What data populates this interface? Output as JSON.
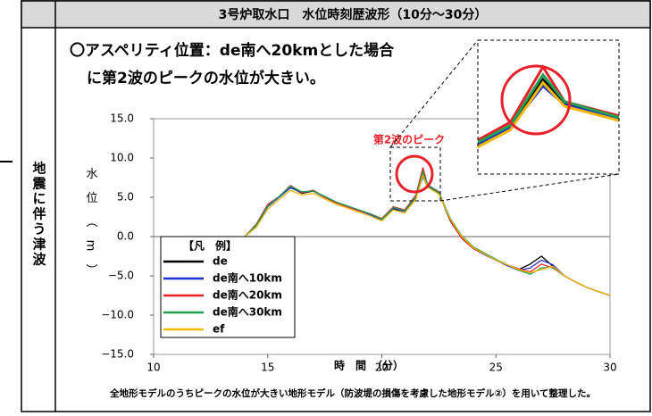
{
  "header": {
    "title": "3号炉取水口　水位時刻歴波形（10分～30分）"
  },
  "side_label": "地震に伴う津波",
  "heading": [
    "〇アスペリティ位置：de南へ20kmとした場合",
    "に第2波のピークの水位が大きい。"
  ],
  "footnote": "全地形モデルのうちピークの水位が大きい地形モデル（防波堤の損傷を考慮した地形モデル②）を用いて整理した。",
  "chart_data": {
    "type": "line",
    "xlabel": "時　間　（分）",
    "ylabel": "水位（m）",
    "annotation": "第2波のピーク",
    "legend_title": "【凡　例】",
    "x": [
      14,
      14.5,
      15,
      15.5,
      16,
      16.5,
      17,
      17.5,
      18,
      18.5,
      19,
      19.5,
      20,
      20.5,
      21,
      21.5,
      21.8,
      22,
      22.5,
      23,
      23.5,
      24,
      24.5,
      25,
      25.5,
      26,
      26.5,
      27,
      27.5,
      28,
      28.5,
      29,
      29.5,
      30
    ],
    "series": [
      {
        "name": "de",
        "color": "#000000",
        "values": [
          0,
          1.5,
          4,
          5,
          6.3,
          5.5,
          5.8,
          5,
          4.3,
          3.8,
          3.3,
          2.8,
          2.2,
          3.5,
          3.2,
          5,
          8,
          6.5,
          5.5,
          2,
          -0.2,
          -1.5,
          -2.3,
          -3,
          -3.6,
          -4.2,
          -3.5,
          -2.5,
          -3.8,
          -5,
          -5.8,
          -6.5,
          -7,
          -7.5
        ]
      },
      {
        "name": "de南へ10km",
        "color": "#1f2fd0",
        "values": [
          0,
          1.4,
          3.8,
          5,
          6.2,
          5.6,
          5.8,
          5.1,
          4.4,
          3.8,
          3.3,
          2.8,
          2.1,
          3.6,
          3.2,
          5,
          7.6,
          6.4,
          5.5,
          2.2,
          0,
          -1.4,
          -2.3,
          -3,
          -3.7,
          -4.3,
          -4,
          -3,
          -3.6,
          -5,
          -5.8,
          -6.5,
          -7,
          -7.5
        ]
      },
      {
        "name": "de南へ20km",
        "color": "#e8202a",
        "values": [
          0,
          1.6,
          4.1,
          5.1,
          6.5,
          5.6,
          5.9,
          5,
          4.3,
          3.8,
          3.3,
          2.9,
          2.3,
          3.8,
          3.4,
          5.3,
          8.8,
          6.6,
          5.7,
          2.1,
          -0.2,
          -1.5,
          -2.2,
          -3,
          -3.6,
          -4.1,
          -4.5,
          -3.5,
          -4,
          -5,
          -5.8,
          -6.5,
          -7,
          -7.5
        ]
      },
      {
        "name": "de南へ30km",
        "color": "#22a050",
        "values": [
          0,
          1.5,
          3.9,
          5.1,
          6.4,
          5.7,
          5.8,
          5.1,
          4.4,
          3.9,
          3.4,
          2.9,
          2.2,
          3.7,
          3.3,
          5.1,
          8.3,
          6.6,
          5.6,
          2.3,
          0.1,
          -1.3,
          -2.1,
          -2.9,
          -3.6,
          -4.3,
          -4.8,
          -4,
          -3.9,
          -5,
          -5.8,
          -6.5,
          -7,
          -7.5
        ]
      },
      {
        "name": "ef",
        "color": "#f5b800",
        "values": [
          0,
          1.2,
          3.5,
          4.7,
          5.9,
          5.3,
          5.5,
          4.8,
          4.1,
          3.6,
          3.1,
          2.6,
          2,
          3.4,
          3,
          4.8,
          7.8,
          6.3,
          5.4,
          2.2,
          0,
          -1.4,
          -2.2,
          -3,
          -3.6,
          -4.2,
          -4.6,
          -4.2,
          -3.8,
          -5,
          -5.8,
          -6.5,
          -7,
          -7.5
        ]
      }
    ],
    "xlim": [
      10,
      30
    ],
    "xticks": [
      10,
      15,
      20,
      25,
      30
    ],
    "ylim": [
      -15,
      15
    ],
    "yticks": [
      {
        "value": -15,
        "label": "−15.0"
      },
      {
        "value": -10,
        "label": "−10.0"
      },
      {
        "value": -5,
        "label": "−5.0"
      },
      {
        "value": 0,
        "label": "0.0"
      },
      {
        "value": 5,
        "label": "5.0"
      },
      {
        "value": 10,
        "label": "10.0"
      },
      {
        "value": 15,
        "label": "15.0"
      }
    ]
  }
}
